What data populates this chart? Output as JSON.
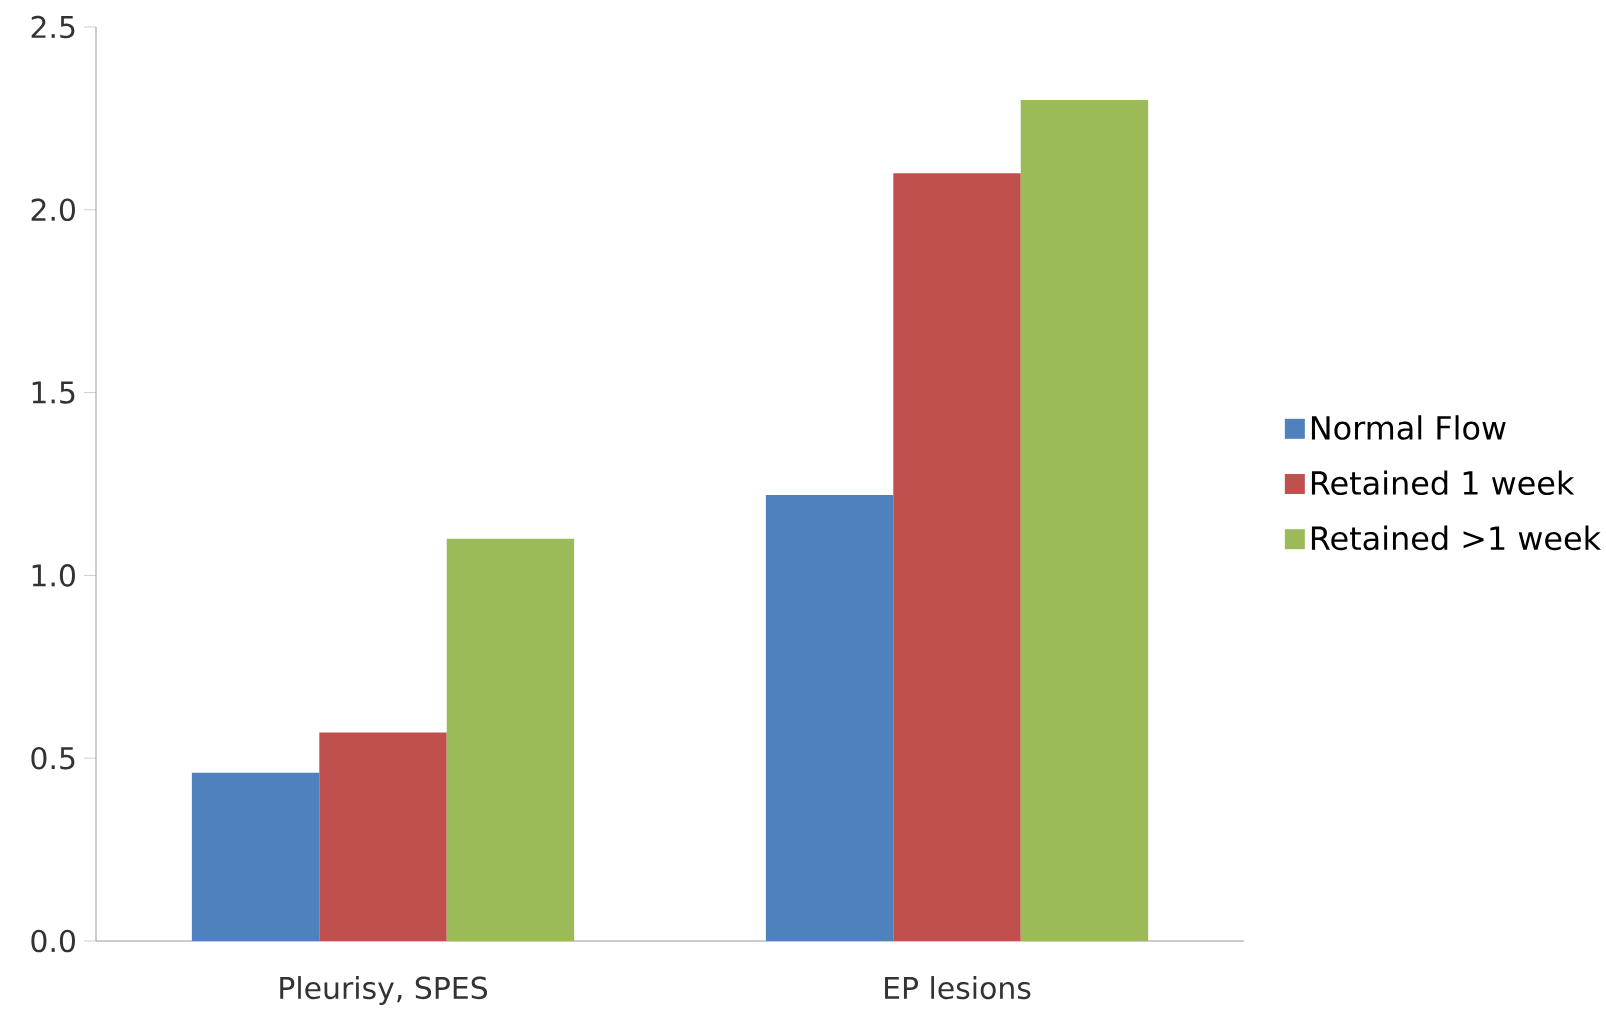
{
  "chart_data": {
    "type": "bar",
    "categories": [
      "Pleurisy, SPES",
      "EP lesions"
    ],
    "series": [
      {
        "name": "Normal Flow",
        "color": "#4f81bd",
        "values": [
          0.46,
          1.22
        ]
      },
      {
        "name": "Retained 1 week",
        "color": "#c0504d",
        "values": [
          0.57,
          2.1
        ]
      },
      {
        "name": "Retained >1 week",
        "color": "#9bbb59",
        "values": [
          1.1,
          2.3
        ]
      }
    ],
    "ylim": [
      0,
      2.5
    ],
    "yticks": [
      {
        "value": 0,
        "label": "0.0"
      },
      {
        "value": 0.5,
        "label": "0.5"
      },
      {
        "value": 1,
        "label": "1.0"
      },
      {
        "value": 1.5,
        "label": "1.5"
      },
      {
        "value": 2,
        "label": "2.0"
      },
      {
        "value": 2.5,
        "label": "2.5"
      }
    ],
    "grid": false,
    "legend": "right"
  }
}
